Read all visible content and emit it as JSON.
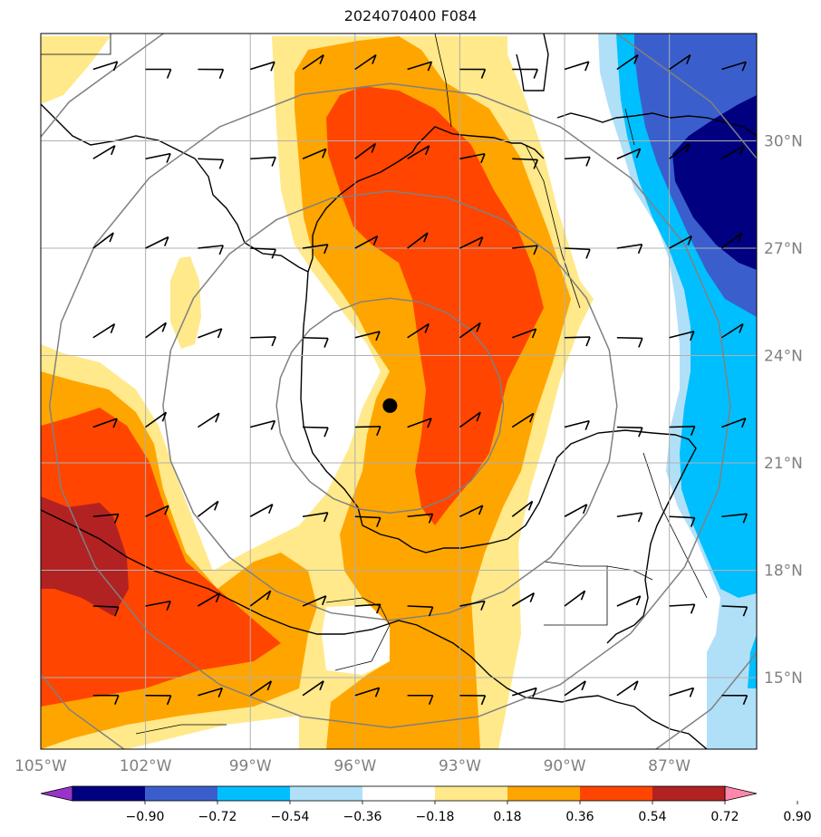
{
  "title": "2024070400 F084",
  "map": {
    "region": {
      "lon_min": -105,
      "lon_max": -84.5,
      "lat_min": 13,
      "lat_max": 33
    },
    "lon_ticks": [
      {
        "value": -105,
        "label": "105°W"
      },
      {
        "value": -102,
        "label": "102°W"
      },
      {
        "value": -99,
        "label": "99°W"
      },
      {
        "value": -96,
        "label": "96°W"
      },
      {
        "value": -93,
        "label": "93°W"
      },
      {
        "value": -90,
        "label": "90°W"
      },
      {
        "value": -87,
        "label": "87°W"
      }
    ],
    "lat_ticks": [
      {
        "value": 30,
        "label": "30°N"
      },
      {
        "value": 27,
        "label": "27°N"
      },
      {
        "value": 24,
        "label": "24°N"
      },
      {
        "value": 21,
        "label": "21°N"
      },
      {
        "value": 18,
        "label": "18°N"
      },
      {
        "value": 15,
        "label": "15°N"
      }
    ],
    "center_marker": {
      "lon": -95,
      "lat": 22.6
    },
    "range_rings_deg": [
      3,
      6,
      9,
      12
    ],
    "colorbar": {
      "tick_labels": [
        "−0.90",
        "−0.72",
        "−0.54",
        "−0.36",
        "−0.18",
        "0.18",
        "0.36",
        "0.54",
        "0.72",
        "0.90"
      ],
      "colors": [
        "#9933cc",
        "#000080",
        "#3a5fcd",
        "#00bfff",
        "#b0e0f8",
        "#ffffff",
        "#ffe98a",
        "#ffa500",
        "#ff4500",
        "#b22222",
        "#ff88aa"
      ]
    }
  }
}
